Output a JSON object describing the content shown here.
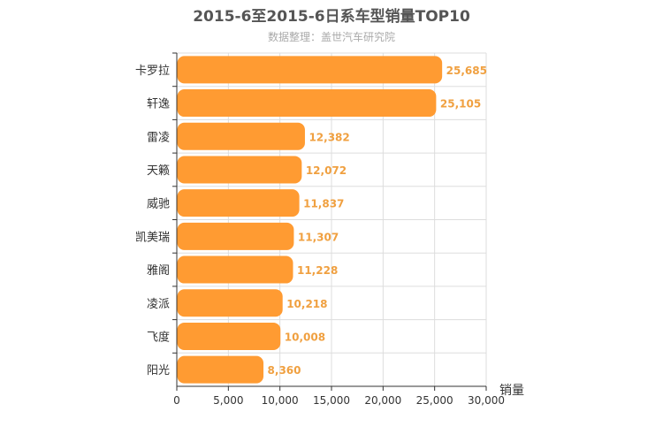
{
  "chart_data": {
    "type": "bar",
    "orientation": "horizontal",
    "title": "2015-6至2015-6日系车型销量TOP10",
    "subtitle": "数据整理：盖世汽车研究院",
    "xlabel": "销量",
    "ylabel": "",
    "xlim": [
      0,
      30000
    ],
    "x_ticks": [
      "0",
      "5,000",
      "10,000",
      "15,000",
      "20,000",
      "25,000",
      "30,000"
    ],
    "categories": [
      "卡罗拉",
      "轩逸",
      "雷凌",
      "天籁",
      "威驰",
      "凯美瑞",
      "雅阁",
      "凌派",
      "飞度",
      "阳光"
    ],
    "values": [
      25685,
      25105,
      12382,
      12072,
      11837,
      11307,
      11228,
      10218,
      10008,
      8360
    ],
    "value_labels": [
      "25,685",
      "25,105",
      "12,382",
      "12,072",
      "11,837",
      "11,307",
      "11,228",
      "10,218",
      "10,008",
      "8,360"
    ],
    "grid": true,
    "bar_color": "#ff9b32",
    "label_color": "#f0a040"
  }
}
